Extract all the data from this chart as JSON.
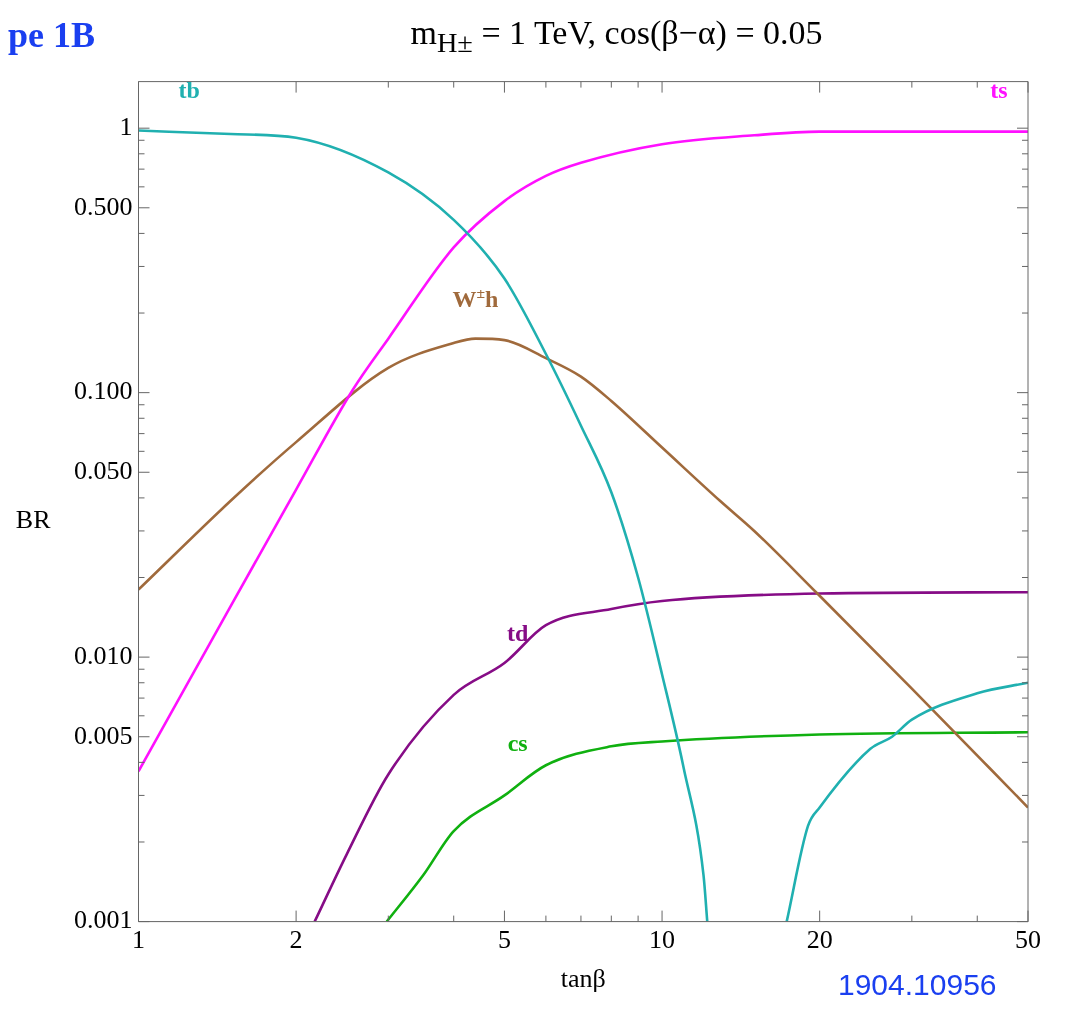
{
  "chart_data": {
    "type": "line",
    "title": "m$_{H±}$ = 1 TeV, cos(β−α) = 0.05",
    "xlabel": "tanβ",
    "ylabel": "BR",
    "log": "xy",
    "grid": false,
    "legend": false,
    "marker": "none",
    "line_style": "solid",
    "xlim": [
      1,
      50
    ],
    "xticks": [
      1,
      2,
      {
        "value": 3,
        "label": null
      },
      {
        "value": 4,
        "label": null
      },
      5,
      {
        "value": 6,
        "label": null
      },
      {
        "value": 7,
        "label": null
      },
      {
        "value": 8,
        "label": null
      },
      {
        "value": 9,
        "label": null
      },
      10,
      20,
      {
        "value": 30,
        "label": null
      },
      {
        "value": 40,
        "label": null
      },
      50
    ],
    "ylim": [
      0.001,
      1.5
    ],
    "yticks": [
      {
        "value": 0.001,
        "label": "0.001"
      },
      {
        "value": 0.002,
        "label": null
      },
      {
        "value": 0.003,
        "label": null
      },
      {
        "value": 0.004,
        "label": null
      },
      {
        "value": 0.005,
        "label": "0.005"
      },
      {
        "value": 0.006,
        "label": null
      },
      {
        "value": 0.007,
        "label": null
      },
      {
        "value": 0.008,
        "label": null
      },
      {
        "value": 0.009,
        "label": null
      },
      {
        "value": 0.01,
        "label": "0.010"
      },
      {
        "value": 0.02,
        "label": null
      },
      {
        "value": 0.03,
        "label": null
      },
      {
        "value": 0.04,
        "label": null
      },
      {
        "value": 0.05,
        "label": "0.050"
      },
      {
        "value": 0.06,
        "label": null
      },
      {
        "value": 0.07,
        "label": null
      },
      {
        "value": 0.08,
        "label": null
      },
      {
        "value": 0.09,
        "label": null
      },
      {
        "value": 0.1,
        "label": "0.100"
      },
      {
        "value": 0.2,
        "label": null
      },
      {
        "value": 0.3,
        "label": null
      },
      {
        "value": 0.4,
        "label": null
      },
      {
        "value": 0.5,
        "label": "0.500"
      },
      {
        "value": 0.6,
        "label": null
      },
      {
        "value": 0.7,
        "label": null
      },
      {
        "value": 0.8,
        "label": null
      },
      {
        "value": 0.9,
        "label": null
      },
      {
        "value": 1,
        "label": "1"
      }
    ],
    "series": [
      {
        "name": "tb",
        "color": "#20b0b0",
        "x": [
          1,
          1.5,
          2,
          3,
          4,
          5,
          6,
          7,
          8,
          9,
          10,
          11,
          12,
          12.2
        ],
        "values": [
          0.98,
          0.95,
          0.92,
          0.68,
          0.45,
          0.27,
          0.14,
          0.075,
          0.042,
          0.02,
          0.0086,
          0.0038,
          0.0015,
          0.001
        ]
      },
      {
        "color": "#20b0b0",
        "x": [
          17.3,
          19,
          20,
          25,
          27.5,
          30,
          40,
          50
        ],
        "values": [
          0.001,
          0.0023,
          0.0027,
          0.0045,
          0.005,
          0.0058,
          0.0073,
          0.008
        ]
      },
      {
        "name": "ts",
        "color": "#ff10ff",
        "x": [
          1,
          1.5,
          2,
          2.57,
          3,
          4,
          5,
          6,
          7,
          10,
          15,
          20,
          50
        ],
        "values": [
          0.0037,
          0.0156,
          0.043,
          0.103,
          0.16,
          0.354,
          0.53,
          0.66,
          0.74,
          0.87,
          0.94,
          0.97,
          0.97
        ]
      },
      {
        "name": "W$^{±}$h",
        "color": "#a06a3c",
        "x": [
          1,
          1.5,
          2,
          3,
          4,
          4.4,
          5,
          6,
          7,
          8,
          10,
          12.9,
          15,
          19.8,
          30,
          50
        ],
        "values": [
          0.018,
          0.039,
          0.065,
          0.124,
          0.154,
          0.16,
          0.158,
          0.135,
          0.115,
          0.093,
          0.062,
          0.039,
          0.03,
          0.0174,
          0.0076,
          0.0027
        ]
      },
      {
        "name": "td",
        "color": "#860c86",
        "x": [
          2.17,
          2.5,
          3,
          4,
          5,
          6,
          8,
          10,
          20,
          50
        ],
        "values": [
          0.001,
          0.0018,
          0.0036,
          0.0072,
          0.0095,
          0.0132,
          0.0152,
          0.0163,
          0.0174,
          0.0176
        ]
      },
      {
        "name": "cs",
        "color": "#10b010",
        "x": [
          2.98,
          3.5,
          4,
          5,
          6,
          8,
          10,
          20,
          50
        ],
        "values": [
          0.001,
          0.0015,
          0.0022,
          0.003,
          0.0039,
          0.0046,
          0.0048,
          0.0051,
          0.0052
        ]
      }
    ],
    "annotations": [
      "pe 1B",
      "1904.10956"
    ]
  }
}
